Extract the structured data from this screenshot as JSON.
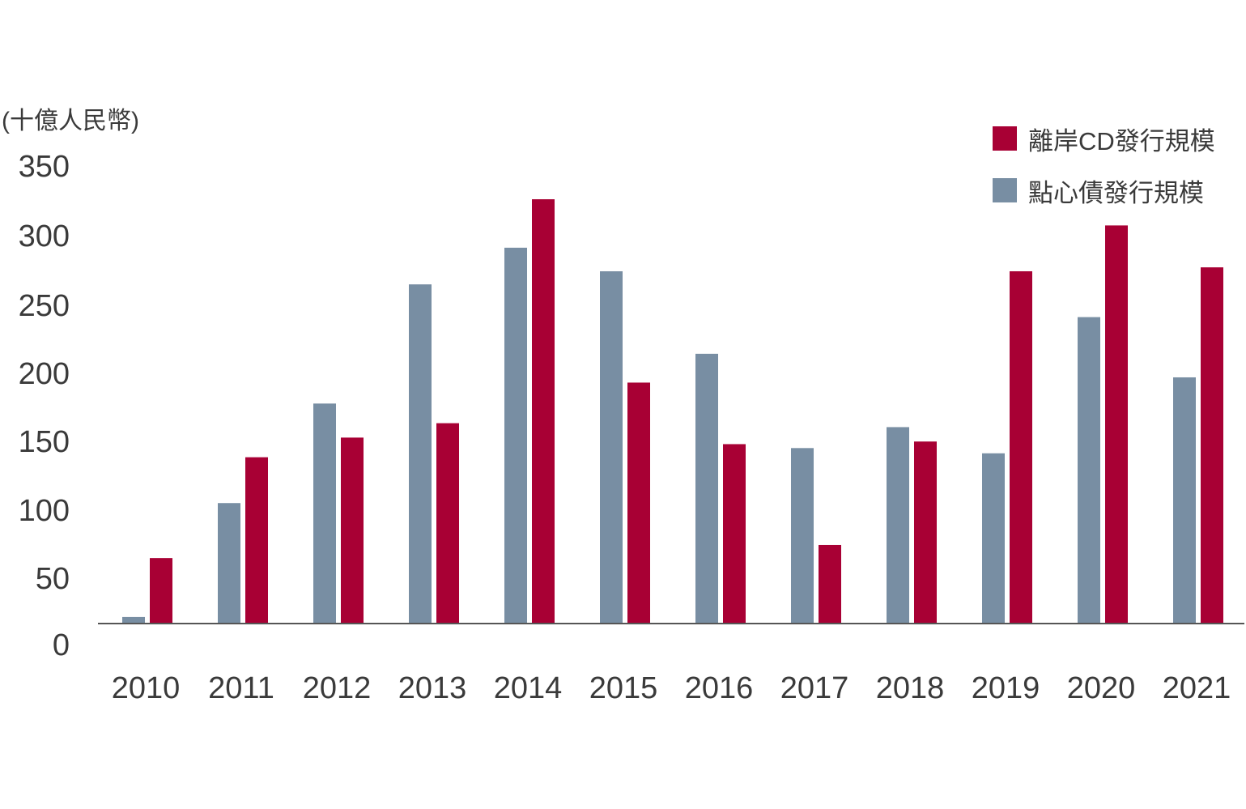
{
  "chart_data": {
    "type": "bar",
    "unit_label": "(十億人民幣)",
    "categories": [
      "2010",
      "2011",
      "2012",
      "2013",
      "2014",
      "2015",
      "2016",
      "2017",
      "2018",
      "2019",
      "2020",
      "2021"
    ],
    "series": [
      {
        "name": "點心債發行規模",
        "color": "#788ea3",
        "values": [
          5,
          92,
          168,
          259,
          287,
          269,
          206,
          134,
          150,
          130,
          234,
          188
        ]
      },
      {
        "name": "離岸CD發行規模",
        "color": "#a80034",
        "values": [
          50,
          127,
          142,
          153,
          324,
          184,
          137,
          60,
          139,
          269,
          304,
          272
        ]
      }
    ],
    "y_ticks": [
      "350",
      "300",
      "250",
      "200",
      "150",
      "100",
      "50",
      "0"
    ],
    "ylim": [
      0,
      350
    ],
    "grid": false,
    "legend_position": "top-right"
  }
}
